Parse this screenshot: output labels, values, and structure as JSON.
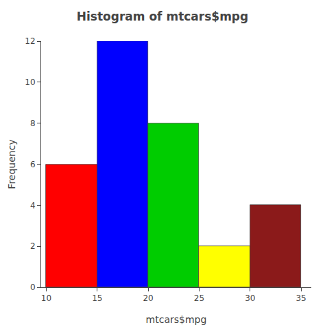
{
  "chart_data": {
    "type": "histogram",
    "title": "Histogram of mtcars$mpg",
    "xlabel": "mtcars$mpg",
    "ylabel": "Frequency",
    "bins": [
      10,
      15,
      20,
      25,
      30,
      35
    ],
    "values": [
      6,
      12,
      8,
      2,
      4
    ],
    "colors": [
      "#FF0000",
      "#0000FF",
      "#00CC00",
      "#FFFF00",
      "#8B1A1A"
    ],
    "xlim": [
      9.5,
      36
    ],
    "ylim": [
      0,
      12
    ],
    "xticks": [
      10,
      15,
      20,
      25,
      30,
      35
    ],
    "yticks": [
      0,
      2,
      4,
      6,
      8,
      10,
      12
    ],
    "grid": false
  }
}
